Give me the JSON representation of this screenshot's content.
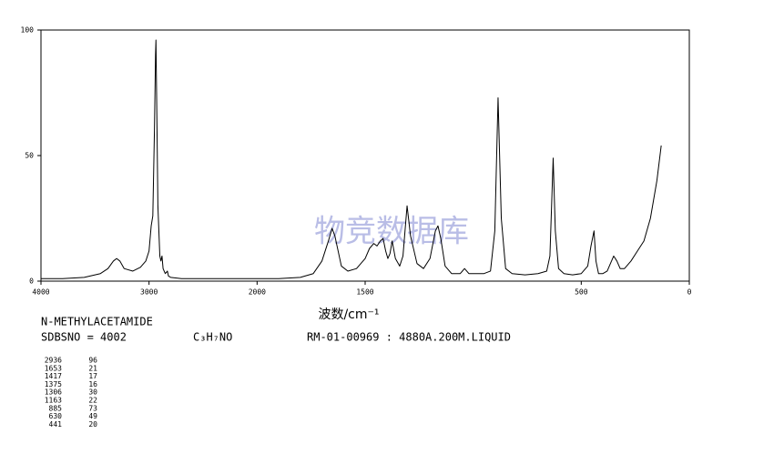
{
  "chart_data": {
    "type": "line",
    "x_label": "波数/cm⁻¹",
    "compound": "N-METHYLACETAMIDE",
    "sdbs": "SDBSNO = 4002",
    "formula": "C₃H₇NO",
    "conditions": "RM-01-00969 : 4880A.200M.LIQUID",
    "watermark": "物竞数据库",
    "xlim": [
      4000,
      0
    ],
    "x_scale_break": 2000,
    "xticks": [
      4000,
      3000,
      2000,
      1500,
      500,
      0
    ],
    "ylim": [
      0,
      100
    ],
    "yticks": [
      0,
      50,
      100
    ],
    "grid": false,
    "x": [
      4000,
      3800,
      3600,
      3450,
      3380,
      3330,
      3300,
      3270,
      3230,
      3150,
      3080,
      3030,
      3000,
      2980,
      2965,
      2950,
      2940,
      2936,
      2930,
      2918,
      2900,
      2890,
      2880,
      2870,
      2850,
      2830,
      2820,
      2800,
      2700,
      2400,
      2100,
      1900,
      1800,
      1740,
      1700,
      1670,
      1653,
      1640,
      1610,
      1580,
      1540,
      1500,
      1480,
      1460,
      1445,
      1430,
      1417,
      1405,
      1395,
      1385,
      1375,
      1360,
      1340,
      1325,
      1306,
      1290,
      1260,
      1230,
      1200,
      1175,
      1163,
      1150,
      1130,
      1100,
      1060,
      1040,
      1020,
      990,
      950,
      920,
      900,
      885,
      870,
      850,
      820,
      760,
      700,
      660,
      645,
      630,
      620,
      605,
      580,
      540,
      500,
      470,
      455,
      441,
      432,
      420,
      400,
      380,
      365,
      350,
      335,
      320,
      300,
      270,
      240,
      210,
      180,
      150,
      130
    ],
    "series": [
      {
        "name": "spectrum",
        "color": "#000000",
        "values": [
          1,
          1,
          1.5,
          3,
          5,
          8,
          9,
          8,
          5,
          4,
          5.5,
          8,
          12,
          22,
          26,
          60,
          90,
          96,
          75,
          30,
          10,
          8,
          10,
          5,
          3,
          4,
          2,
          1.5,
          1,
          1,
          1,
          1,
          1.5,
          3,
          8,
          16,
          21,
          18,
          6,
          4,
          5,
          9,
          13,
          15,
          14,
          16,
          17,
          12,
          9,
          11,
          16,
          9,
          6,
          10,
          30,
          18,
          7,
          5,
          9,
          20,
          22,
          17,
          6,
          3,
          3,
          5,
          3,
          3,
          3,
          4,
          20,
          73,
          25,
          5,
          3,
          2.5,
          3,
          4,
          10,
          49,
          20,
          5,
          3,
          2.5,
          3,
          6,
          14,
          20,
          8,
          3,
          3,
          4,
          7,
          10,
          8,
          5,
          5,
          8,
          12,
          16,
          25,
          40,
          54
        ]
      }
    ],
    "peaks": {
      "wavenumber": [
        2936,
        1653,
        1417,
        1375,
        1306,
        1163,
        885,
        630,
        441
      ],
      "intensity": [
        96,
        21,
        17,
        16,
        30,
        22,
        73,
        49,
        20
      ]
    }
  }
}
